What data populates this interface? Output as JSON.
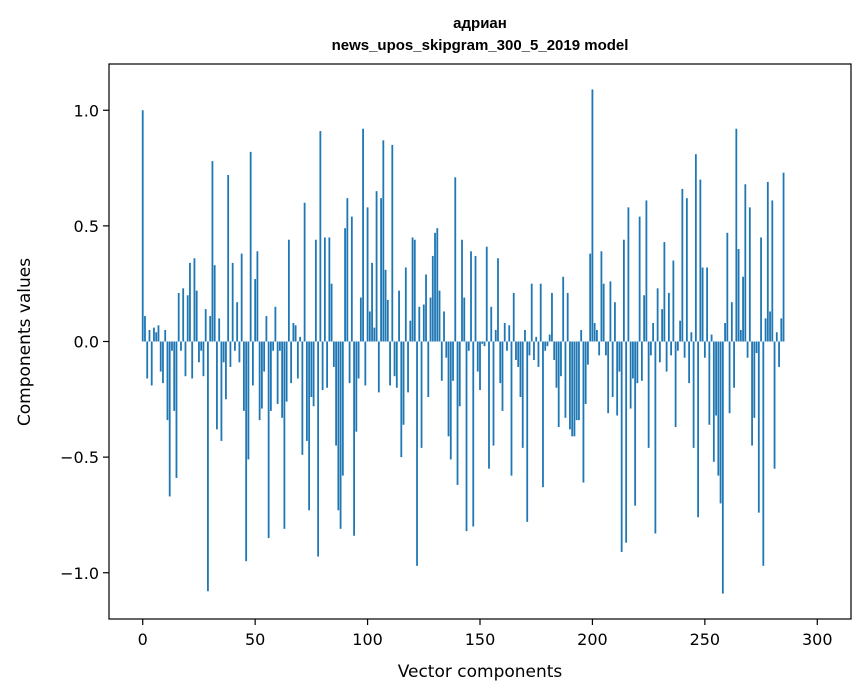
{
  "chart_data": {
    "type": "bar",
    "title_line1": "адриан",
    "title_line2": "news_upos_skipgram_300_5_2019 model",
    "xlabel": "Vector components",
    "ylabel": "Components values",
    "xlim": [
      -15,
      315
    ],
    "ylim": [
      -1.2,
      1.2
    ],
    "x_ticks": [
      0,
      50,
      100,
      150,
      200,
      250,
      300
    ],
    "x_tick_labels": [
      "0",
      "50",
      "100",
      "150",
      "200",
      "250",
      "300"
    ],
    "y_ticks": [
      1.0,
      0.5,
      0.0,
      -0.5,
      -1.0
    ],
    "y_tick_labels": [
      "1.0",
      "0.5",
      "0.0",
      "−0.5",
      "−1.0"
    ],
    "grid": false,
    "bar_color": "#1f77b4",
    "values": [
      1.0,
      0.11,
      -0.16,
      0.05,
      -0.19,
      0.06,
      0.04,
      0.07,
      -0.13,
      -0.18,
      0.05,
      -0.34,
      -0.67,
      -0.04,
      -0.3,
      -0.59,
      0.21,
      -0.04,
      0.23,
      -0.15,
      0.2,
      0.34,
      -0.16,
      0.36,
      0.22,
      -0.09,
      -0.04,
      -0.15,
      0.14,
      -1.08,
      0.11,
      0.78,
      0.33,
      -0.38,
      0.1,
      -0.43,
      -0.09,
      -0.25,
      0.72,
      -0.11,
      0.34,
      -0.04,
      0.17,
      -0.09,
      0.38,
      -0.3,
      -0.95,
      -0.51,
      0.82,
      -0.19,
      0.27,
      0.39,
      -0.34,
      -0.29,
      -0.13,
      0.11,
      -0.85,
      -0.3,
      -0.04,
      0.15,
      -0.27,
      -0.04,
      -0.33,
      -0.81,
      -0.26,
      0.44,
      -0.18,
      0.08,
      0.07,
      -0.16,
      0.02,
      -0.49,
      0.6,
      -0.43,
      -0.73,
      -0.24,
      -0.28,
      0.44,
      -0.93,
      0.91,
      -0.21,
      0.45,
      -0.2,
      0.45,
      0.25,
      -0.11,
      -0.45,
      -0.73,
      -0.81,
      -0.58,
      0.49,
      0.62,
      -0.18,
      0.54,
      -0.84,
      -0.39,
      -0.16,
      0.19,
      0.92,
      -0.19,
      0.58,
      0.13,
      0.34,
      0.06,
      0.65,
      -0.22,
      0.62,
      0.87,
      0.31,
      0.18,
      -0.19,
      0.85,
      -0.15,
      -0.2,
      0.22,
      -0.5,
      -0.36,
      0.32,
      -0.22,
      0.09,
      0.45,
      0.44,
      -0.97,
      0.15,
      -0.46,
      0.16,
      0.29,
      -0.24,
      0.19,
      0.37,
      0.47,
      0.49,
      0.22,
      -0.17,
      0.13,
      -0.07,
      -0.41,
      -0.51,
      -0.17,
      0.71,
      -0.62,
      -0.28,
      0.44,
      0.19,
      -0.82,
      -0.04,
      0.39,
      -0.8,
      0.37,
      -0.13,
      -0.21,
      -0.01,
      -0.02,
      0.41,
      -0.55,
      0.15,
      -0.45,
      0.05,
      0.36,
      -0.18,
      -0.3,
      0.08,
      -0.04,
      0.07,
      -0.58,
      0.21,
      -0.08,
      -0.11,
      -0.24,
      -0.46,
      0.05,
      -0.78,
      -0.06,
      0.25,
      -0.08,
      0.02,
      -0.11,
      0.25,
      -0.63,
      -0.04,
      -0.02,
      0.03,
      0.21,
      -0.08,
      -0.2,
      -0.37,
      -0.15,
      0.28,
      -0.33,
      0.21,
      -0.38,
      -0.41,
      -0.41,
      -0.34,
      -0.34,
      0.05,
      -0.61,
      -0.27,
      -0.1,
      0.38,
      1.09,
      0.08,
      0.05,
      -0.06,
      0.39,
      0.25,
      -0.06,
      -0.31,
      0.26,
      -0.24,
      0.17,
      -0.32,
      -0.13,
      -0.91,
      0.44,
      -0.87,
      0.58,
      -0.29,
      -0.16,
      -0.71,
      -0.18,
      0.54,
      -0.17,
      0.2,
      0.61,
      -0.46,
      -0.06,
      0.08,
      -0.83,
      0.23,
      -0.09,
      0.14,
      0.43,
      -0.13,
      0.21,
      -0.06,
      0.35,
      -0.37,
      -0.04,
      0.09,
      0.66,
      -0.07,
      0.62,
      -0.18,
      0.04,
      -0.46,
      0.81,
      -0.76,
      0.7,
      0.32,
      -0.07,
      0.32,
      -0.36,
      0.03,
      -0.52,
      -0.32,
      -0.58,
      -0.7,
      -1.09,
      0.08,
      0.47,
      -0.31,
      0.17,
      -0.2,
      0.92,
      0.4,
      0.05,
      0.28,
      0.68,
      -0.07,
      0.58,
      -0.45,
      -0.33,
      -0.05,
      -0.74,
      0.45,
      -0.97,
      0.1,
      0.69,
      0.13,
      0.61,
      -0.55,
      0.04,
      -0.11,
      0.1,
      0.73
    ]
  }
}
